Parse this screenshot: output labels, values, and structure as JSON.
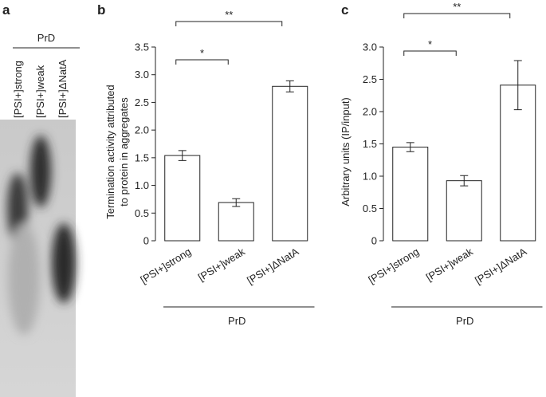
{
  "panel_a": {
    "letter": "a",
    "group_label": "PrD",
    "lanes": [
      "[PSI+]strong",
      "[PSI+]weak",
      "[PSI+]ΔNatA"
    ]
  },
  "chart_data": [
    {
      "type": "bar",
      "panel": "b",
      "ylabel": [
        "Termination activity attributed",
        "to protein in aggregates"
      ],
      "categories": [
        "[PSI+]strong",
        "[PSI+]weak",
        "[PSI+]ΔNatA"
      ],
      "values": [
        1.54,
        0.69,
        2.79
      ],
      "errors": [
        0.09,
        0.07,
        0.1
      ],
      "color": "#ffffff",
      "ylim": [
        0,
        3.5
      ],
      "yticks": [
        0,
        0.5,
        {
          "value": 1,
          "label": "1.0"
        },
        1.5,
        {
          "value": 2,
          "label": "2.0"
        },
        2.5,
        {
          "value": 3,
          "label": "3.0"
        },
        3.5
      ],
      "group_label": "PrD",
      "annotations": [
        "*",
        "**"
      ]
    },
    {
      "type": "bar",
      "panel": "c",
      "ylabel": [
        "Arbitrary units (IP/input)"
      ],
      "categories": [
        "[PSI+]strong",
        "[PSI+]weak",
        "[PSI+]ΔNatA"
      ],
      "values": [
        1.45,
        0.93,
        2.41
      ],
      "errors": [
        0.07,
        0.08,
        0.38
      ],
      "color": "#ffffff",
      "ylim": [
        0,
        3
      ],
      "yticks": [
        0,
        0.5,
        {
          "value": 1,
          "label": "1.0"
        },
        1.5,
        {
          "value": 2,
          "label": "2.0"
        },
        2.5,
        {
          "value": 3,
          "label": "3.0"
        }
      ],
      "group_label": "PrD",
      "annotations": [
        "*",
        "**"
      ]
    }
  ]
}
